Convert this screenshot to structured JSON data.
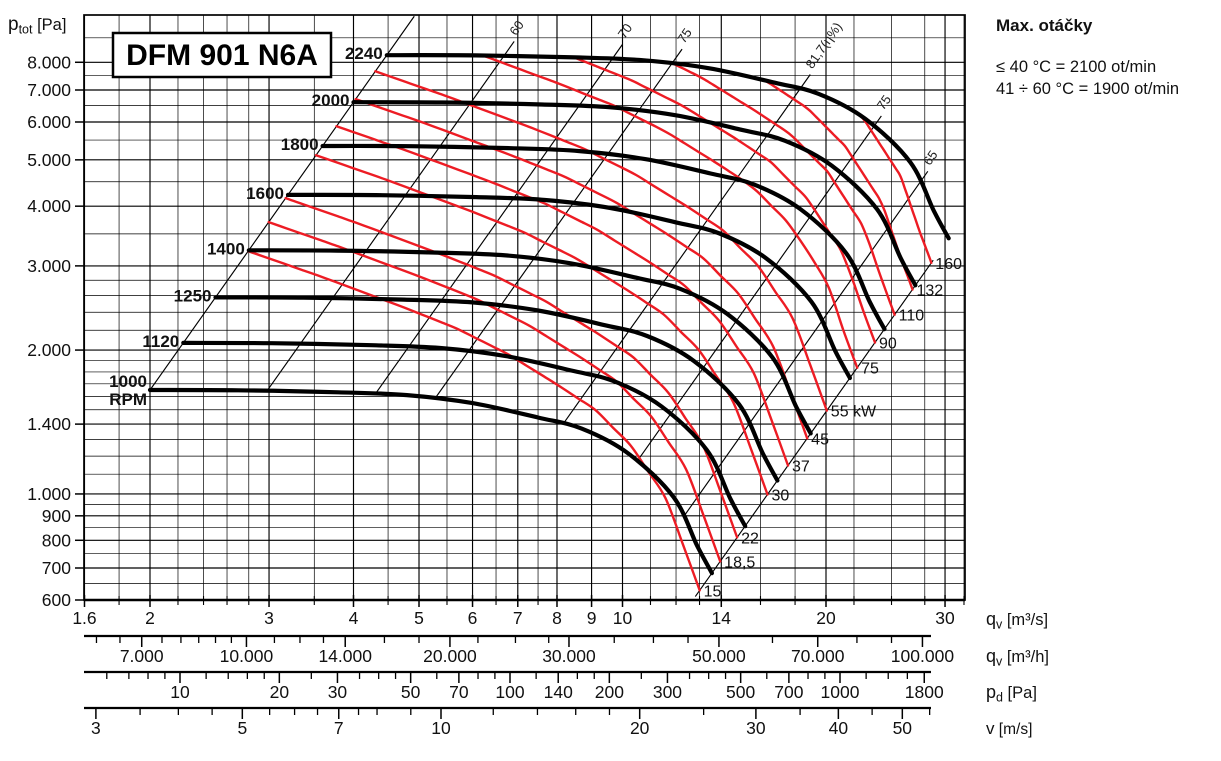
{
  "header": {
    "title": "DFM 901 N6A"
  },
  "side_note": {
    "heading": "Max. otáčky",
    "lines": [
      "≤ 40 °C = 2100 ot/min",
      "41 ÷ 60 °C = 1900 ot/min"
    ]
  },
  "axes_captions": {
    "ptot": {
      "base": "p",
      "sub": "tot",
      "unit": " [Pa]"
    },
    "qv_s": {
      "base": "q",
      "sub": "v",
      "unit": " [m³/s]"
    },
    "qv_h": {
      "base": "q",
      "sub": "v",
      "unit": " [m³/h]"
    },
    "pd": {
      "base": "p",
      "sub": "d",
      "unit": " [Pa]"
    },
    "v": {
      "base": "v",
      "sub": "",
      "unit": " [m/s]"
    }
  },
  "chart_data": {
    "type": "line",
    "title": "DFM 901 N6A",
    "x_axis": {
      "scale": "log",
      "unit": "m3/s",
      "range": [
        1.6,
        32.2
      ],
      "tick_labels": [
        {
          "v": 1.6,
          "t": "1.6"
        },
        {
          "v": 2,
          "t": "2"
        },
        {
          "v": 3,
          "t": "3"
        },
        {
          "v": 4,
          "t": "4"
        },
        {
          "v": 5,
          "t": "5"
        },
        {
          "v": 6,
          "t": "6"
        },
        {
          "v": 7,
          "t": "7"
        },
        {
          "v": 8,
          "t": "8"
        },
        {
          "v": 9,
          "t": "9"
        },
        {
          "v": 10,
          "t": "10"
        },
        {
          "v": 14,
          "t": "14"
        },
        {
          "v": 20,
          "t": "20"
        },
        {
          "v": 30,
          "t": "30"
        }
      ],
      "grid_minor": [
        1.8,
        2.2,
        2.4,
        2.6,
        2.8,
        3.5,
        4.5,
        5.5,
        6.5,
        7.5,
        11,
        12,
        13,
        16,
        18,
        22,
        25,
        28,
        32
      ]
    },
    "y_axis": {
      "scale": "log",
      "unit": "Pa",
      "range": [
        600,
        10000
      ],
      "tick_labels": [
        {
          "v": 8000,
          "t": "8.000"
        },
        {
          "v": 7000,
          "t": "7.000"
        },
        {
          "v": 6000,
          "t": "6.000"
        },
        {
          "v": 5000,
          "t": "5.000"
        },
        {
          "v": 4000,
          "t": "4.000"
        },
        {
          "v": 3000,
          "t": "3.000"
        },
        {
          "v": 2000,
          "t": "2.000"
        },
        {
          "v": 1400,
          "t": "1.400"
        },
        {
          "v": 1000,
          "t": "1.000"
        },
        {
          "v": 900,
          "t": "900"
        },
        {
          "v": 800,
          "t": "800"
        },
        {
          "v": 700,
          "t": "700"
        },
        {
          "v": 600,
          "t": "600"
        }
      ],
      "grid_minor": [
        650,
        750,
        850,
        950,
        1100,
        1200,
        1300,
        1500,
        1600,
        1700,
        1800,
        1900,
        2200,
        2400,
        2600,
        2800,
        3500,
        4500,
        5500,
        6500,
        7500,
        9000
      ]
    },
    "fan_curves": {
      "rpm": [
        1000,
        1120,
        1250,
        1400,
        1600,
        1800,
        2000,
        2240
      ],
      "rpm_unit": "RPM",
      "base_curve_1000rpm": {
        "q_m3s": [
          2.0,
          2.7,
          3.8,
          4.8,
          6.0,
          7.5,
          8.7,
          10.2,
          11.9,
          12.9,
          13.56
        ],
        "p_pa": [
          1650,
          1648,
          1632,
          1610,
          1549,
          1445,
          1370,
          1215,
          985,
          778,
          683
        ]
      }
    },
    "power_curves": {
      "unit": "kW",
      "items": [
        {
          "kw": 15,
          "label": "15"
        },
        {
          "kw": 18.5,
          "label": "18,5"
        },
        {
          "kw": 22,
          "label": "22"
        },
        {
          "kw": 30,
          "label": "30"
        },
        {
          "kw": 37,
          "label": "37"
        },
        {
          "kw": 45,
          "label": "45"
        },
        {
          "kw": 55,
          "label": "55 kW"
        },
        {
          "kw": 75,
          "label": "75"
        },
        {
          "kw": 90,
          "label": "90"
        },
        {
          "kw": 110,
          "label": "110"
        },
        {
          "kw": 132,
          "label": "132"
        },
        {
          "kw": 160,
          "label": "160"
        }
      ],
      "model": {
        "p_at_base_start_kw": 5.5,
        "p_at_base_end_kw": 17,
        "flow_exponent": 0.589
      }
    },
    "efficiency_lines": [
      {
        "label": "",
        "phi": 2.0,
        "s": [
          1.0,
          2.46
        ]
      },
      {
        "label": "60",
        "phi": 2.98,
        "s": [
          1.0,
          2.32
        ]
      },
      {
        "label": "70",
        "phi": 4.31,
        "s": [
          1.0,
          2.32
        ]
      },
      {
        "label": "75",
        "phi": 5.28,
        "s": [
          1.0,
          2.32
        ]
      },
      {
        "label": "81,7(η%)",
        "phi": 8.17,
        "s": [
          1.0,
          2.32
        ]
      },
      {
        "label": "75",
        "phi": 10.5,
        "s": [
          1.0,
          2.3
        ]
      },
      {
        "label": "65",
        "phi": 12.3,
        "s": [
          1.0,
          2.3
        ]
      },
      {
        "label": "",
        "phi": 13.56,
        "s": [
          0.945,
          2.125
        ]
      }
    ],
    "secondary_scales": [
      {
        "id": "m3h",
        "labels": [
          {
            "v": 7000,
            "t": "7.000"
          },
          {
            "v": 10000,
            "t": "10.000"
          },
          {
            "v": 14000,
            "t": "14.000"
          },
          {
            "v": 20000,
            "t": "20.000"
          },
          {
            "v": 30000,
            "t": "30.000"
          },
          {
            "v": 50000,
            "t": "50.000"
          },
          {
            "v": 70000,
            "t": "70.000"
          },
          {
            "v": 100000,
            "t": "100.000"
          }
        ],
        "ticks": [
          6000,
          6500,
          7500,
          8000,
          8500,
          9000,
          9500,
          11000,
          12000,
          13000,
          16000,
          18000,
          22000,
          25000,
          28000,
          35000,
          40000,
          45000,
          60000,
          80000,
          90000
        ]
      },
      {
        "id": "pd",
        "labels": [
          {
            "v": 10,
            "t": "10"
          },
          {
            "v": 20,
            "t": "20"
          },
          {
            "v": 30,
            "t": "30"
          },
          {
            "v": 50,
            "t": "50"
          },
          {
            "v": 70,
            "t": "70"
          },
          {
            "v": 100,
            "t": "100"
          },
          {
            "v": 140,
            "t": "140"
          },
          {
            "v": 200,
            "t": "200"
          },
          {
            "v": 300,
            "t": "300"
          },
          {
            "v": 500,
            "t": "500"
          },
          {
            "v": 700,
            "t": "700"
          },
          {
            "v": 1000,
            "t": "1000"
          },
          {
            "v": 1800,
            "t": "1800"
          }
        ],
        "ticks": [
          6,
          7,
          8,
          9,
          12,
          14,
          16,
          18,
          25,
          35,
          40,
          45,
          60,
          80,
          90,
          120,
          160,
          180,
          250,
          350,
          400,
          450,
          600,
          800,
          900,
          1200,
          1400,
          1600
        ]
      },
      {
        "id": "v",
        "labels": [
          {
            "v": 3,
            "t": "3"
          },
          {
            "v": 5,
            "t": "5"
          },
          {
            "v": 7,
            "t": "7"
          },
          {
            "v": 10,
            "t": "10"
          },
          {
            "v": 20,
            "t": "20"
          },
          {
            "v": 30,
            "t": "30"
          },
          {
            "v": 40,
            "t": "40"
          },
          {
            "v": 50,
            "t": "50"
          }
        ],
        "ticks": [
          3.5,
          4,
          4.5,
          5.5,
          6,
          6.5,
          7.5,
          8,
          9,
          12,
          14,
          16,
          18,
          25,
          35,
          45,
          55
        ]
      }
    ],
    "colors": {
      "curve": "#000000",
      "power": "#ED1C24",
      "grid": "#000000"
    }
  }
}
